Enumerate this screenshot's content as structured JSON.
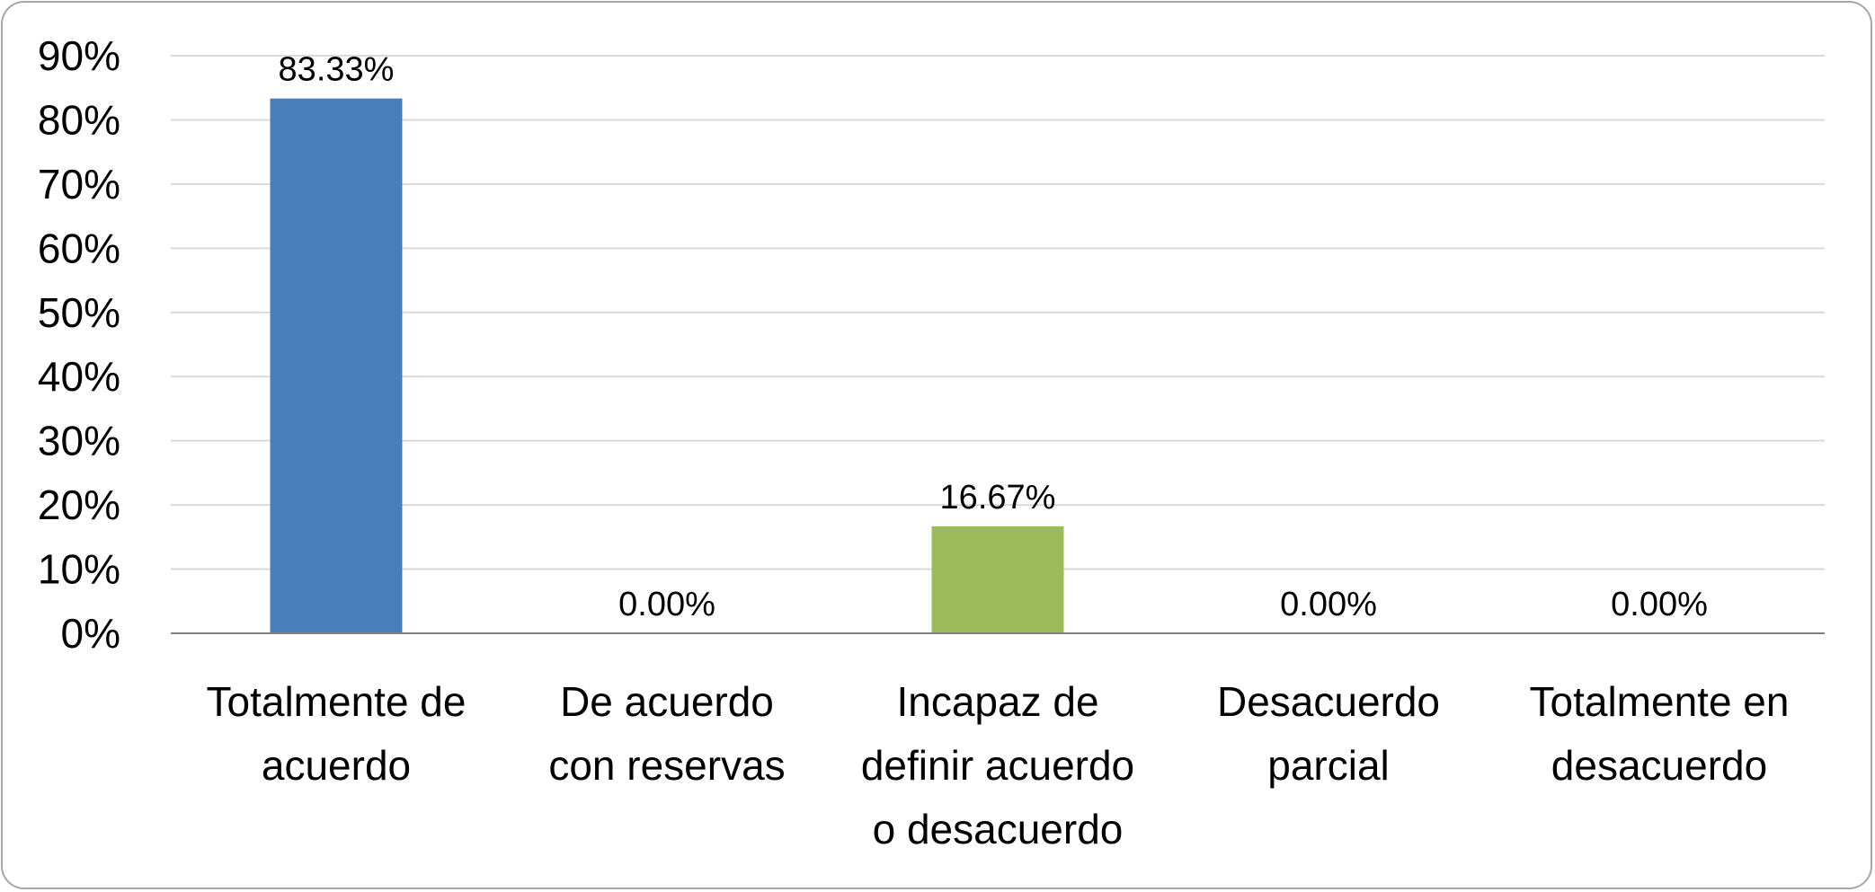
{
  "chart_data": {
    "type": "bar",
    "title": "",
    "xlabel": "",
    "ylabel": "",
    "categories": [
      [
        "Totalmente de",
        "acuerdo"
      ],
      [
        "De acuerdo",
        "con reservas"
      ],
      [
        "Incapaz de",
        "definir acuerdo",
        "o desacuerdo"
      ],
      [
        "Desacuerdo",
        "parcial"
      ],
      [
        "Totalmente en",
        "desacuerdo"
      ]
    ],
    "values": [
      83.33,
      0.0,
      16.67,
      0.0,
      0.0
    ],
    "data_labels": [
      "83.33%",
      "0.00%",
      "16.67%",
      "0.00%",
      "0.00%"
    ],
    "bar_colors": [
      "#4a7ebb",
      "#4a7ebb",
      "#9bbb59",
      "#4a7ebb",
      "#4a7ebb"
    ],
    "y_ticks": [
      "0%",
      "10%",
      "20%",
      "30%",
      "40%",
      "50%",
      "60%",
      "70%",
      "80%",
      "90%"
    ],
    "ylim": [
      0,
      90
    ],
    "grid": true,
    "legend": "none",
    "colors": {
      "gridline": "#d9d9d9",
      "axis": "#808080",
      "frame": "#a6a6a6"
    }
  }
}
